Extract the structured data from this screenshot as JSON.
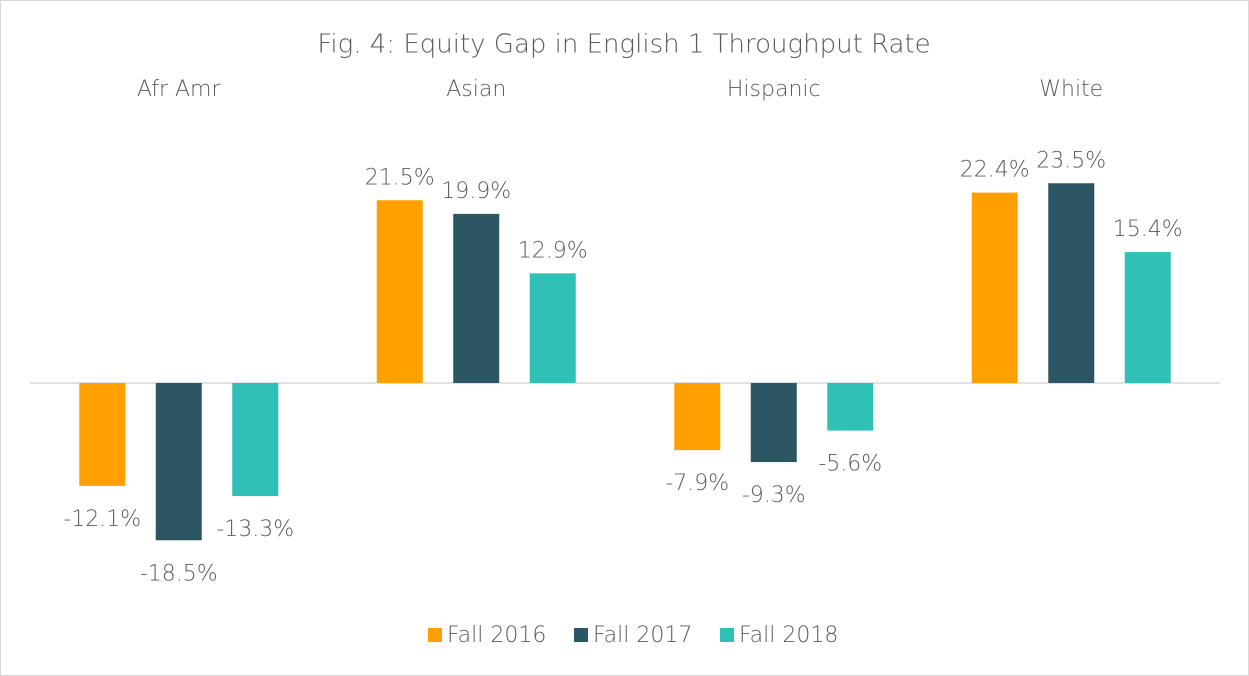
{
  "chart_data": {
    "type": "bar",
    "title": "Fig. 4: Equity Gap in English 1 Throughput Rate",
    "categories": [
      "Afr Amr",
      "Asian",
      "Hispanic",
      "White"
    ],
    "series": [
      {
        "name": "Fall 2016",
        "color": "#ffa000",
        "values": [
          -12.1,
          21.5,
          -7.9,
          22.4
        ],
        "value_labels": [
          "-12.1%",
          "21.5%",
          "-7.9%",
          "22.4%"
        ]
      },
      {
        "name": "Fall 2017",
        "color": "#2b5663",
        "values": [
          -18.5,
          19.9,
          -9.3,
          23.5
        ],
        "value_labels": [
          "-18.5%",
          "19.9%",
          "-9.3%",
          "23.5%"
        ]
      },
      {
        "name": "Fall 2018",
        "color": "#2fc1b5",
        "values": [
          -13.3,
          12.9,
          -5.6,
          15.4
        ],
        "value_labels": [
          "-13.3%",
          "12.9%",
          "-5.6%",
          "15.4%"
        ]
      }
    ],
    "legend": "bottom"
  }
}
